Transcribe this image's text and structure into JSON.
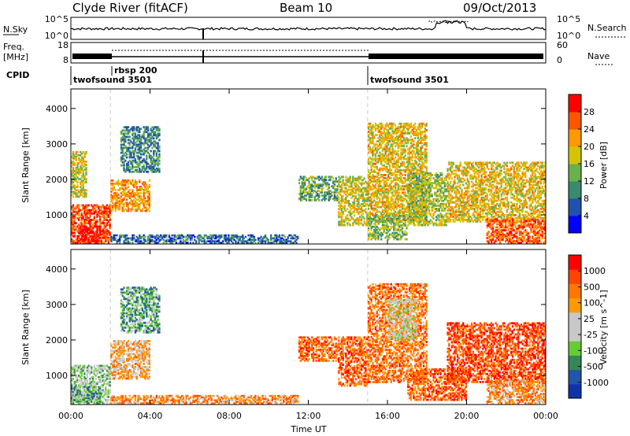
{
  "header": {
    "station": "Clyde River (fitACF)",
    "beam": "Beam 10",
    "date": "09/Oct/2013"
  },
  "nsky_panel": {
    "left_label": "N.Sky",
    "right_label": "N.Search",
    "left_ticks": [
      "10^5",
      "10^0"
    ],
    "right_ticks": [
      "10^5",
      "10^0"
    ]
  },
  "freq_panel": {
    "left_label_1": "Freq.",
    "left_label_2": "[MHz]",
    "left_ticks": [
      "18",
      "8"
    ],
    "right_label": "Nave",
    "right_ticks": [
      "60",
      "0"
    ]
  },
  "cpid": {
    "label": "CPID",
    "segments": [
      {
        "name": "twofsound 3501",
        "start_hr": 0
      },
      {
        "name": "rbsp 200",
        "start_hr": 2
      },
      {
        "name": "twofsound 3501",
        "start_hr": 15
      }
    ]
  },
  "x_axis": {
    "label": "Time UT",
    "ticks": [
      "00:00",
      "04:00",
      "08:00",
      "12:00",
      "16:00",
      "20:00",
      "00:00"
    ]
  },
  "colors": {
    "power": [
      "#0000ff",
      "#2050b0",
      "#3a8a70",
      "#6ab04c",
      "#d4c400",
      "#ff9900",
      "#ff5500",
      "#ff0000"
    ],
    "velocity": [
      "#ff0000",
      "#ff4400",
      "#ff7700",
      "#ff9900",
      "#c8c8c8",
      "#c8c8c8",
      "#66cc33",
      "#338855",
      "#2255aa",
      "#1133aa"
    ]
  },
  "chart_data": [
    {
      "type": "heatmap",
      "ylabel": "Slant Range [km]",
      "xlabel": "",
      "ylim": [
        180,
        4550
      ],
      "xlim_hr": [
        0,
        24
      ],
      "yticks": [
        "1000",
        "2000",
        "3000",
        "4000"
      ],
      "colorbar": {
        "label": "Power [dB]",
        "range": [
          0,
          32
        ],
        "ticks": [
          "4",
          "8",
          "12",
          "16",
          "20",
          "24",
          "28"
        ]
      },
      "regions": [
        {
          "t0": 0.0,
          "t1": 2.0,
          "r0": 200,
          "r1": 1300,
          "level": 0.85
        },
        {
          "t0": 0.3,
          "t1": 1.5,
          "r0": 200,
          "r1": 700,
          "level": 0.95
        },
        {
          "t0": 0.0,
          "t1": 0.8,
          "r0": 1500,
          "r1": 2800,
          "level": 0.55
        },
        {
          "t0": 2.0,
          "t1": 4.0,
          "r0": 1100,
          "r1": 2000,
          "level": 0.7
        },
        {
          "t0": 2.5,
          "t1": 4.5,
          "r0": 2200,
          "r1": 3500,
          "level": 0.3
        },
        {
          "t0": 2.0,
          "t1": 11.5,
          "r0": 200,
          "r1": 450,
          "level": 0.25
        },
        {
          "t0": 11.5,
          "t1": 13.5,
          "r0": 1400,
          "r1": 2100,
          "level": 0.4
        },
        {
          "t0": 13.5,
          "t1": 15.0,
          "r0": 700,
          "r1": 2100,
          "level": 0.55
        },
        {
          "t0": 15.0,
          "t1": 18.0,
          "r0": 800,
          "r1": 3600,
          "level": 0.6
        },
        {
          "t0": 15.0,
          "t1": 17.0,
          "r0": 300,
          "r1": 1000,
          "level": 0.45
        },
        {
          "t0": 17.0,
          "t1": 19.0,
          "r0": 700,
          "r1": 2200,
          "level": 0.5
        },
        {
          "t0": 19.0,
          "t1": 24.0,
          "r0": 800,
          "r1": 2500,
          "level": 0.6
        },
        {
          "t0": 21.0,
          "t1": 24.0,
          "r0": 200,
          "r1": 900,
          "level": 0.8
        }
      ]
    },
    {
      "type": "heatmap",
      "ylabel": "Slant Range [km]",
      "xlabel": "Time UT",
      "ylim": [
        180,
        4550
      ],
      "xlim_hr": [
        0,
        24
      ],
      "yticks": [
        "1000",
        "2000",
        "3000",
        "4000"
      ],
      "colorbar": {
        "label": "Velocity [m s^-1]",
        "range": [
          -1250,
          1250
        ],
        "ticks": [
          "1000",
          "500",
          "100",
          "25",
          "-25",
          "-100",
          "-500",
          "-1000"
        ]
      },
      "regions": [
        {
          "t0": 0.0,
          "t1": 2.0,
          "r0": 200,
          "r1": 1300,
          "level": 0.6
        },
        {
          "t0": 0.0,
          "t1": 1.5,
          "r0": 200,
          "r1": 700,
          "level": 0.7
        },
        {
          "t0": 2.0,
          "t1": 4.0,
          "r0": 900,
          "r1": 2000,
          "level": 0.35
        },
        {
          "t0": 2.5,
          "t1": 4.5,
          "r0": 2200,
          "r1": 3500,
          "level": 0.7
        },
        {
          "t0": 2.0,
          "t1": 11.5,
          "r0": 200,
          "r1": 450,
          "level": 0.3
        },
        {
          "t0": 11.5,
          "t1": 13.5,
          "r0": 1400,
          "r1": 2100,
          "level": 0.2
        },
        {
          "t0": 13.5,
          "t1": 15.0,
          "r0": 700,
          "r1": 2100,
          "level": 0.2
        },
        {
          "t0": 15.0,
          "t1": 18.0,
          "r0": 800,
          "r1": 3600,
          "level": 0.25
        },
        {
          "t0": 16.0,
          "t1": 17.5,
          "r0": 2000,
          "r1": 3200,
          "level": 0.5
        },
        {
          "t0": 17.0,
          "t1": 20.0,
          "r0": 300,
          "r1": 1200,
          "level": 0.2
        },
        {
          "t0": 19.0,
          "t1": 24.0,
          "r0": 800,
          "r1": 2500,
          "level": 0.15
        },
        {
          "t0": 21.0,
          "t1": 24.0,
          "r0": 200,
          "r1": 900,
          "level": 0.3
        }
      ]
    }
  ]
}
